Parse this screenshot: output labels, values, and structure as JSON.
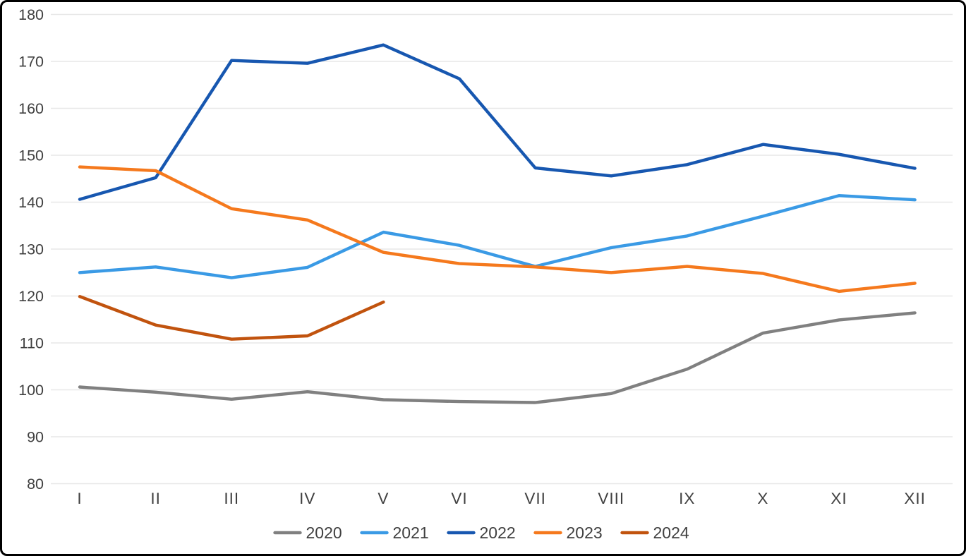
{
  "chart_data": {
    "type": "line",
    "title": "",
    "x_categories": [
      "I",
      "II",
      "III",
      "IV",
      "V",
      "VI",
      "VII",
      "VIII",
      "IX",
      "X",
      "XI",
      "XII"
    ],
    "y_ticks": [
      180,
      170,
      160,
      150,
      140,
      130,
      120,
      110,
      100,
      90,
      80
    ],
    "ylim": [
      80,
      180
    ],
    "grid": "horizontal-only",
    "gridline_color": "#e7e7e7",
    "axis_label_color": "#404040",
    "legend_position": "bottom-center",
    "series": [
      {
        "name": "2020",
        "color": "#808080",
        "values": [
          100.6,
          99.5,
          98.0,
          99.6,
          97.9,
          97.5,
          97.3,
          99.2,
          104.4,
          112.1,
          114.9,
          116.4
        ]
      },
      {
        "name": "2021",
        "color": "#3a9ae5",
        "values": [
          125.0,
          126.2,
          123.9,
          126.1,
          133.6,
          130.8,
          126.3,
          130.3,
          132.8,
          137.0,
          141.4,
          140.5
        ]
      },
      {
        "name": "2022",
        "color": "#1757b0",
        "values": [
          140.6,
          145.2,
          170.2,
          169.6,
          173.5,
          166.3,
          147.3,
          145.6,
          148.0,
          152.3,
          150.2,
          147.2
        ]
      },
      {
        "name": "2023",
        "color": "#f5791d",
        "values": [
          147.5,
          146.7,
          138.6,
          136.2,
          129.3,
          126.9,
          126.2,
          125.0,
          126.3,
          124.8,
          121.0,
          122.7
        ]
      },
      {
        "name": "2024",
        "color": "#c1530e",
        "values": [
          119.9,
          113.8,
          110.8,
          111.5,
          118.7
        ]
      }
    ]
  }
}
